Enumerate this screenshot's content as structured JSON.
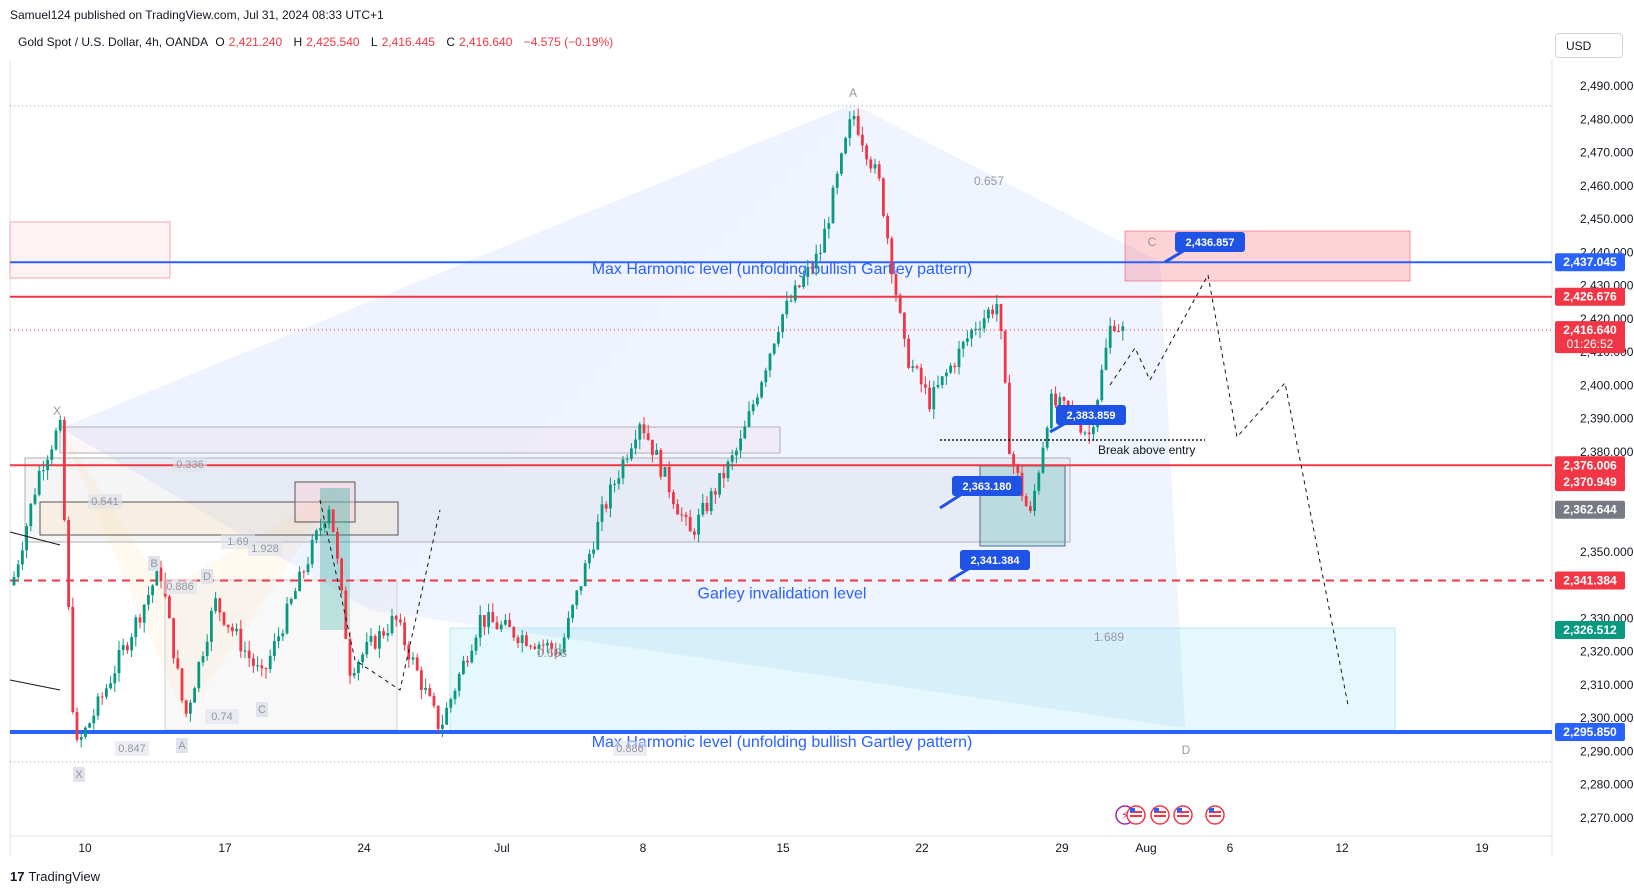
{
  "header": {
    "publisher": "Samuel124 published on TradingView.com, Jul 31, 2024 08:33 UTC+1",
    "symbol": "Gold Spot / U.S. Dollar, 4h, OANDA",
    "open_label": "O",
    "open": "2,421.240",
    "high_label": "H",
    "high": "2,425.540",
    "low_label": "L",
    "low": "2,416.445",
    "close_label": "C",
    "close": "2,416.640",
    "change": "−4.575 (−0.19%)",
    "currency": "USD"
  },
  "footer": {
    "brand": "TradingView",
    "logo": "17"
  },
  "colors": {
    "up": "#089981",
    "down": "#f23645",
    "blue": "#2962ff",
    "label_blue": "#1e53e5",
    "red_line": "#f23645"
  },
  "chart_data": {
    "type": "candlestick",
    "ylim": [
      2265,
      2497
    ],
    "x_tick_labels": [
      "10",
      "17",
      "24",
      "Jul",
      "8",
      "15",
      "22",
      "29",
      "Aug",
      "6",
      "12",
      "19"
    ],
    "y_tick_labels": [
      "2,490.000",
      "2,480.000",
      "2,470.000",
      "2,460.000",
      "2,450.000",
      "2,440.000",
      "2,430.000",
      "2,420.000",
      "2,410.000",
      "2,400.000",
      "2,390.000",
      "2,380.000",
      "2,350.000",
      "2,330.000",
      "2,320.000",
      "2,310.000",
      "2,300.000",
      "2,290.000",
      "2,280.000",
      "2,270.000"
    ],
    "y_ticks": [
      2490,
      2480,
      2470,
      2460,
      2450,
      2440,
      2430,
      2420,
      2410,
      2400,
      2390,
      2380,
      2350,
      2330,
      2320,
      2310,
      2300,
      2290,
      2280,
      2270
    ],
    "price_labels": [
      {
        "text": "2,437.045",
        "value": 2437.045,
        "color": "#2962ff"
      },
      {
        "text": "2,426.676",
        "value": 2426.676,
        "color": "#f23645"
      },
      {
        "text": "2,416.640",
        "value": 2416.64,
        "color": "#f23645",
        "sub": "01:26:52"
      },
      {
        "text": "2,376.006",
        "value": 2376.006,
        "color": "#f23645"
      },
      {
        "text": "2,370.949",
        "value": 2370.949,
        "color": "#f23645"
      },
      {
        "text": "2,362.644",
        "value": 2362.644,
        "color": "#787b86"
      },
      {
        "text": "2,341.384",
        "value": 2341.384,
        "color": "#f23645"
      },
      {
        "text": "2,326.512",
        "value": 2326.512,
        "color": "#089981"
      },
      {
        "text": "2,295.850",
        "value": 2295.85,
        "color": "#2962ff"
      }
    ],
    "levels": [
      {
        "name": "Max Harmonic level (unfolding bullish Gartley pattern)",
        "value": 2437.045,
        "color": "#2962ff",
        "style": "solid"
      },
      {
        "name": "",
        "value": 2426.676,
        "color": "#f23645",
        "style": "solid"
      },
      {
        "name": "",
        "value": 2376.006,
        "color": "#f23645",
        "style": "solid"
      },
      {
        "name": "Garley invalidation level",
        "value": 2341.384,
        "color": "#f23645",
        "style": "dashed"
      },
      {
        "name": "Max Harmonic level (unfolding bullish Gartley pattern)",
        "value": 2295.85,
        "color": "#2962ff",
        "style": "solid"
      }
    ],
    "callouts": [
      {
        "text": "2,436.857",
        "value": 2436.857
      },
      {
        "text": "2,363.180",
        "value": 2363.18
      },
      {
        "text": "2,341.384",
        "value": 2341.384
      },
      {
        "text": "2,383.859",
        "value": 2383.859
      }
    ],
    "annotations": {
      "break_entry": "Break above entry",
      "point_a": "A",
      "point_c": "C",
      "point_d": "D",
      "point_x": "X",
      "ratio_top": "0.657",
      "ratio_mid": "0.658",
      "ratio_d": "1.689",
      "small_ratios": [
        "0.336",
        "0.541",
        "1.69",
        "1.928",
        "0.886",
        "0.74",
        "0.847",
        "0.886"
      ],
      "small_points": [
        "B",
        "D",
        "C",
        "A",
        "X"
      ]
    }
  }
}
